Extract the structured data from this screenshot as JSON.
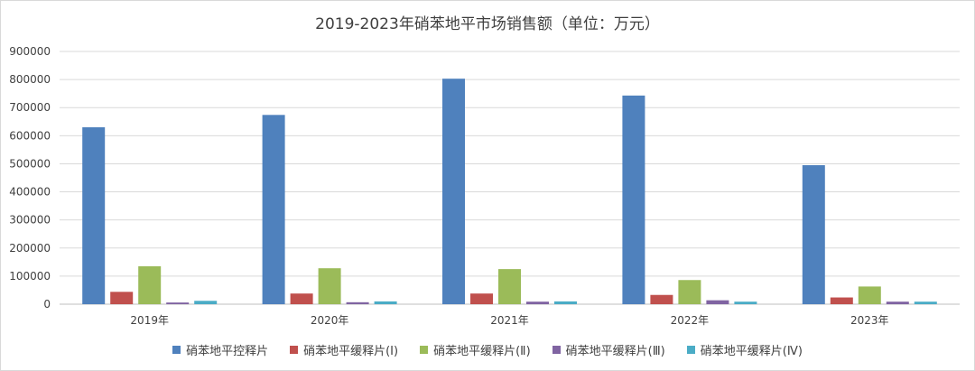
{
  "chart_data": {
    "type": "bar",
    "title": "2019-2023年硝苯地平市场销售额（单位：万元）",
    "categories": [
      "2019年",
      "2020年",
      "2021年",
      "2022年",
      "2023年"
    ],
    "ylim": [
      0,
      900000
    ],
    "yticks": [
      "0",
      "100000",
      "200000",
      "300000",
      "400000",
      "500000",
      "600000",
      "700000",
      "800000",
      "900000"
    ],
    "grid": true,
    "legend_position": "bottom",
    "series": [
      {
        "name": "硝苯地平控释片",
        "color": "#4f81bd",
        "values": [
          630000,
          674000,
          803000,
          743000,
          495000
        ]
      },
      {
        "name": "硝苯地平缓释片(Ⅰ)",
        "color": "#c0504d",
        "values": [
          44000,
          38000,
          38000,
          33000,
          24000
        ]
      },
      {
        "name": "硝苯地平缓释片(Ⅱ)",
        "color": "#9bbb59",
        "values": [
          135000,
          128000,
          125000,
          86000,
          63000
        ]
      },
      {
        "name": "硝苯地平缓释片(Ⅲ)",
        "color": "#8064a2",
        "values": [
          6000,
          7000,
          9000,
          14000,
          9000
        ]
      },
      {
        "name": "硝苯地平缓释片(Ⅳ)",
        "color": "#4bacc6",
        "values": [
          12000,
          10000,
          10000,
          9000,
          9000
        ]
      }
    ]
  }
}
